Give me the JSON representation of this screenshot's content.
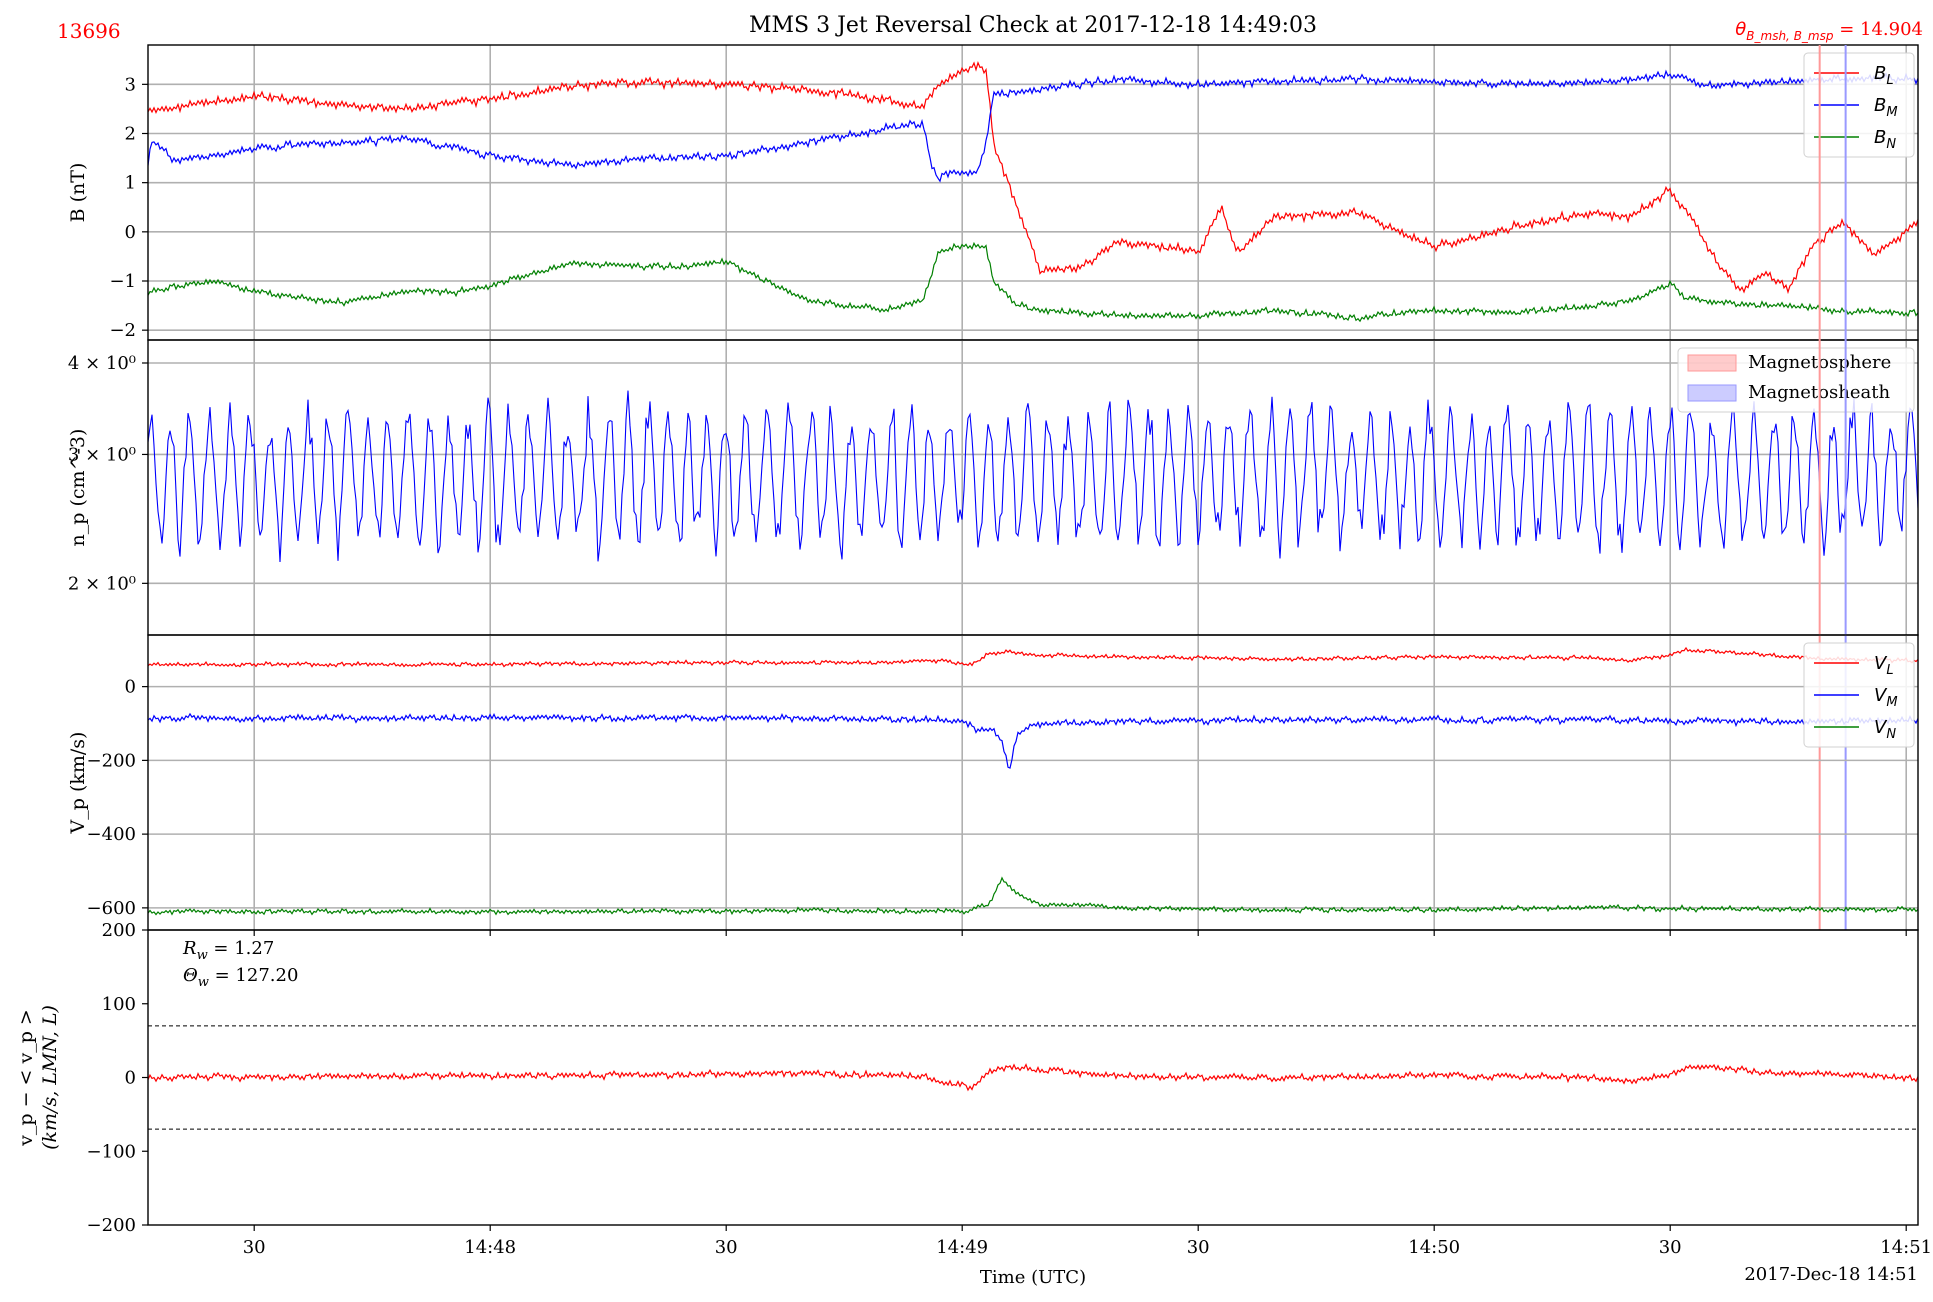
{
  "header": {
    "id_label": "13696",
    "title": "MMS 3 Jet Reversal Check at 2017-12-18 14:49:03",
    "theta_label": "θ",
    "theta_sub": "B_msh, B_msp",
    "theta_value": " = 14.904"
  },
  "colors": {
    "red": "#ff0000",
    "blue": "#0000ff",
    "green": "#008000",
    "grid": "#b0b0b0",
    "msp_span": "#ff9999",
    "msh_span": "#9999ff"
  },
  "xaxis": {
    "label": "Time (UTC)",
    "date_label": "2017-Dec-18 14:51",
    "ticks": [
      "30",
      "14:48",
      "30",
      "14:49",
      "30",
      "14:50",
      "30",
      "14:51"
    ],
    "tick_seconds": [
      30,
      60,
      90,
      120,
      150,
      180,
      210,
      240
    ],
    "range_seconds": [
      16.5,
      241.5
    ]
  },
  "chart_data": [
    {
      "type": "line",
      "panel": "magnetic-field",
      "ylabel": "B (nT)",
      "ylim": [
        -2.2,
        3.8
      ],
      "yticks": [
        -2,
        -1,
        0,
        1,
        2,
        3
      ],
      "ytick_labels": [
        "−2",
        "−1",
        "0",
        "1",
        "2",
        "3"
      ],
      "grid": true,
      "legend": "top-right",
      "series": [
        {
          "name": "B_L",
          "label": "B",
          "sub": "L",
          "color": "red",
          "x": [
            16.5,
            20,
            30,
            40,
            50,
            60,
            70,
            80,
            90,
            100,
            110,
            115,
            117,
            120,
            122,
            123,
            124,
            130,
            135,
            140,
            150,
            153,
            155,
            160,
            170,
            180,
            190,
            200,
            205,
            210,
            212,
            216,
            219,
            222,
            225,
            228,
            232,
            236,
            241.5
          ],
          "y": [
            2.5,
            2.55,
            2.75,
            2.6,
            2.5,
            2.7,
            2.95,
            3.05,
            3.0,
            2.9,
            2.7,
            2.55,
            3.0,
            3.3,
            3.4,
            3.3,
            1.8,
            -0.8,
            -0.7,
            -0.2,
            -0.4,
            0.5,
            -0.4,
            0.3,
            0.4,
            -0.3,
            0.1,
            0.4,
            0.3,
            0.85,
            0.4,
            -0.6,
            -1.2,
            -0.8,
            -1.2,
            -0.3,
            0.2,
            -0.5,
            0.2
          ],
          "noise": 0.08
        },
        {
          "name": "B_M",
          "label": "B",
          "sub": "M",
          "color": "blue",
          "x": [
            16.5,
            17,
            20,
            30,
            40,
            50,
            60,
            70,
            80,
            90,
            100,
            110,
            115,
            116,
            117,
            118,
            120,
            122,
            123,
            124,
            130,
            140,
            150,
            160,
            170,
            180,
            190,
            200,
            210,
            214,
            220,
            225,
            230,
            236,
            241.5
          ],
          "y": [
            1.4,
            1.85,
            1.45,
            1.7,
            1.8,
            1.9,
            1.55,
            1.35,
            1.5,
            1.55,
            1.8,
            2.1,
            2.2,
            1.4,
            1.0,
            1.2,
            1.2,
            1.2,
            1.8,
            2.8,
            2.9,
            3.1,
            3.0,
            3.05,
            3.1,
            3.05,
            3.0,
            3.05,
            3.2,
            3.0,
            3.0,
            3.05,
            3.1,
            3.15,
            3.1
          ],
          "noise": 0.07
        },
        {
          "name": "B_N",
          "label": "B",
          "sub": "N",
          "color": "green",
          "x": [
            16.5,
            20,
            25,
            30,
            40,
            45,
            50,
            55,
            60,
            70,
            80,
            85,
            90,
            100,
            110,
            115,
            116,
            117,
            120,
            122,
            123,
            124,
            127,
            130,
            140,
            150,
            160,
            170,
            180,
            190,
            200,
            205,
            210,
            212,
            216,
            220,
            225,
            230,
            241.5
          ],
          "y": [
            -1.25,
            -1.1,
            -1.0,
            -1.2,
            -1.45,
            -1.35,
            -1.2,
            -1.25,
            -1.1,
            -0.65,
            -0.7,
            -0.7,
            -0.6,
            -1.4,
            -1.6,
            -1.4,
            -1.0,
            -0.4,
            -0.3,
            -0.3,
            -0.3,
            -1.0,
            -1.5,
            -1.6,
            -1.7,
            -1.7,
            -1.6,
            -1.75,
            -1.6,
            -1.65,
            -1.5,
            -1.4,
            -1.05,
            -1.35,
            -1.45,
            -1.5,
            -1.5,
            -1.6,
            -1.65
          ],
          "noise": 0.06
        }
      ]
    },
    {
      "type": "line",
      "panel": "density",
      "ylabel": "n_p (cm^-3)",
      "yscale": "log",
      "ylim": [
        1.7,
        4.3
      ],
      "yticks": [
        2,
        3,
        4
      ],
      "ytick_labels": [
        "2 × 10⁰",
        "3 × 10⁰",
        "4 × 10⁰"
      ],
      "grid": true,
      "legend": "top-right",
      "series": [
        {
          "name": "n_p",
          "color": "blue",
          "center": 2.8,
          "min": 1.8,
          "max": 4.2
        }
      ],
      "spans": [
        {
          "name": "Magnetosphere",
          "color": "msp_span",
          "x": 229
        },
        {
          "name": "Magnetosheath",
          "color": "msh_span",
          "x": 232.3
        }
      ]
    },
    {
      "type": "line",
      "panel": "velocity",
      "ylabel": "V_p (km/s)",
      "ylim": [
        -660,
        140
      ],
      "yticks": [
        -600,
        -400,
        -200,
        0
      ],
      "ytick_labels": [
        "−600",
        "−400",
        "−200",
        "0"
      ],
      "grid": true,
      "legend": "top-right",
      "series": [
        {
          "name": "V_L",
          "label": "V",
          "sub": "L",
          "color": "red",
          "x": [
            16.5,
            60,
            90,
            110,
            117,
            121,
            122,
            123,
            125,
            130,
            140,
            160,
            180,
            200,
            205,
            210,
            212,
            220,
            225,
            230,
            241.5
          ],
          "y": [
            60,
            60,
            65,
            65,
            70,
            60,
            70,
            85,
            95,
            85,
            80,
            75,
            80,
            78,
            70,
            85,
            100,
            90,
            80,
            75,
            70
          ],
          "noise": 5
        },
        {
          "name": "V_M",
          "label": "V",
          "sub": "M",
          "color": "blue",
          "x": [
            16.5,
            60,
            100,
            117,
            120,
            121,
            122,
            124,
            125,
            126,
            127,
            128,
            130,
            140,
            160,
            180,
            200,
            220,
            230,
            241.5
          ],
          "y": [
            -85,
            -85,
            -85,
            -90,
            -95,
            -100,
            -120,
            -110,
            -150,
            -230,
            -130,
            -110,
            -100,
            -95,
            -90,
            -90,
            -90,
            -95,
            -95,
            -90
          ],
          "noise": 8
        },
        {
          "name": "V_N",
          "label": "V",
          "sub": "N",
          "color": "green",
          "x": [
            16.5,
            60,
            100,
            117,
            120,
            121,
            123,
            124,
            125,
            126,
            127,
            128,
            130,
            132,
            140,
            160,
            180,
            200,
            220,
            241.5
          ],
          "y": [
            -610,
            -610,
            -608,
            -608,
            -612,
            -605,
            -595,
            -570,
            -520,
            -540,
            -560,
            -575,
            -590,
            -590,
            -600,
            -605,
            -605,
            -600,
            -603,
            -605
          ],
          "noise": 6
        }
      ]
    },
    {
      "type": "line",
      "panel": "residual-velocity",
      "ylabel": "v_p − < v_p >",
      "ylabel2": "(km/s, LMN, L)",
      "ylim": [
        -200,
        200
      ],
      "yticks": [
        -200,
        -100,
        0,
        100,
        200
      ],
      "ytick_labels": [
        "−200",
        "−100",
        "0",
        "100",
        "200"
      ],
      "grid": false,
      "thresholds": [
        70,
        -70
      ],
      "annotations": [
        {
          "label": "R",
          "sub": "w",
          "value": " = 1.27"
        },
        {
          "label": "Θ",
          "sub": "w",
          "value": " = 127.20"
        }
      ],
      "series": [
        {
          "name": "V_L residual",
          "color": "red",
          "x": [
            16.5,
            60,
            100,
            115,
            117,
            120,
            121,
            123,
            125,
            130,
            140,
            160,
            180,
            200,
            205,
            210,
            212,
            220,
            225,
            230,
            241.5
          ],
          "y": [
            0,
            2,
            5,
            3,
            -5,
            -10,
            -15,
            5,
            15,
            10,
            2,
            0,
            3,
            0,
            -5,
            5,
            15,
            10,
            5,
            5,
            0
          ],
          "noise": 4
        }
      ]
    }
  ]
}
